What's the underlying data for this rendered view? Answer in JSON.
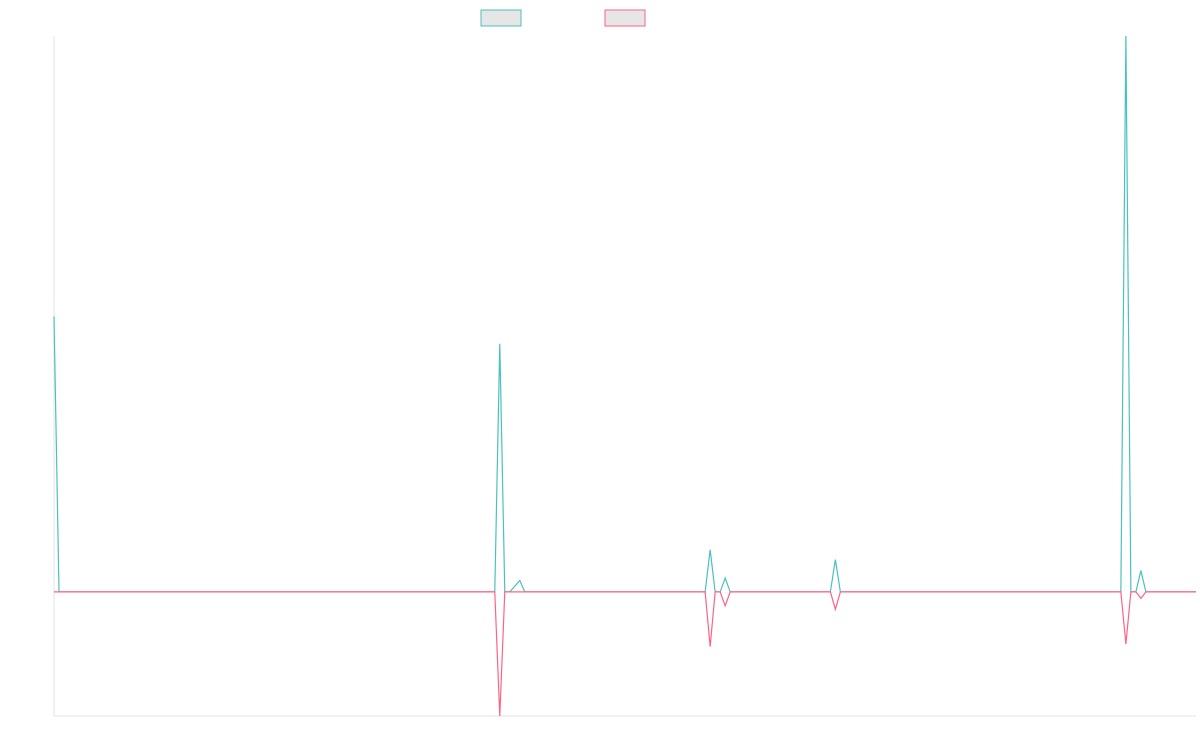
{
  "chart_data": {
    "type": "line",
    "title": "",
    "xlabel": "",
    "ylabel": "",
    "grid": false,
    "legend": {
      "placement": "top-center",
      "entries": [
        {
          "series_index": 0,
          "label": ""
        },
        {
          "series_index": 1,
          "label": ""
        }
      ]
    },
    "xlim": [
      0,
      228
    ],
    "ylim": [
      -25,
      112
    ],
    "x": [
      0,
      1,
      88,
      89,
      90,
      91,
      93,
      94,
      95,
      130,
      131,
      132,
      133,
      134,
      135,
      136,
      155,
      156,
      157,
      213,
      214,
      215,
      216,
      217,
      218,
      228
    ],
    "series": [
      {
        "name": "",
        "color": "#4bc0c0",
        "fill": "#e6e6e6",
        "values": [
          55.5,
          0,
          0,
          50,
          0,
          0,
          2.3,
          0,
          0,
          0,
          8.5,
          0,
          0,
          2.8,
          0,
          0,
          0,
          6.5,
          0,
          0,
          112,
          0,
          0,
          4.3,
          0,
          0
        ]
      },
      {
        "name": "",
        "color": "#ff6384",
        "fill": "#e6e6e6",
        "values": [
          0,
          0,
          0,
          -25,
          0,
          0,
          0,
          0,
          0,
          0,
          -11,
          0,
          0,
          -2.8,
          0,
          0,
          0,
          -3.5,
          0,
          0,
          -10.5,
          0,
          0,
          -1.3,
          0,
          0
        ]
      }
    ]
  }
}
